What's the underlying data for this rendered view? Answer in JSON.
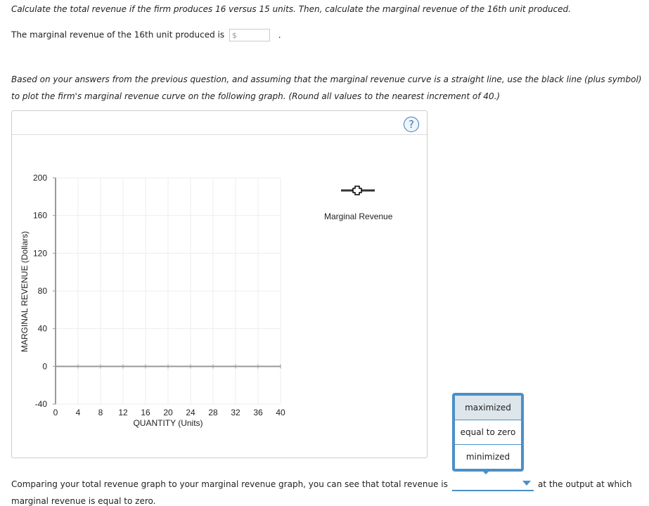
{
  "question1": "Calculate the total revenue if the firm produces 16 versus 15 units. Then, calculate the marginal revenue of the 16th unit produced.",
  "mr_sentence": {
    "prefix": "The marginal revenue of the 16th unit produced is",
    "input_placeholder": "$",
    "suffix": "."
  },
  "question2": [
    "Based on your answers from the previous question, and assuming that the marginal revenue curve is a straight line, use the black line (plus symbol)",
    "to plot the firm's marginal revenue curve on the following graph. (Round all values to the nearest increment of 40.)"
  ],
  "help_label": "?",
  "chart_data": {
    "type": "line",
    "xlabel": "QUANTITY (Units)",
    "ylabel": "MARGINAL REVENUE (Dollars)",
    "xlim": [
      0,
      40
    ],
    "ylim": [
      -40,
      200
    ],
    "xticks": [
      0,
      4,
      8,
      12,
      16,
      20,
      24,
      28,
      32,
      36,
      40
    ],
    "yticks": [
      -40,
      0,
      40,
      80,
      120,
      160,
      200
    ],
    "grid": true,
    "legend": {
      "entries": [
        "Marginal Revenue"
      ],
      "placement": "right",
      "marker": "plus"
    },
    "series": [
      {
        "name": "Marginal Revenue",
        "points": [],
        "color": "#333333"
      }
    ]
  },
  "dropdown": {
    "options": [
      "maximized",
      "equal to zero",
      "minimized"
    ],
    "highlighted": "maximized",
    "accent": "#4a90c8"
  },
  "question3": {
    "prefix": "Comparing your total revenue graph to your marginal revenue graph, you can see that total revenue is",
    "selected": "",
    "suffix": "at the output at which",
    "continuation": "marginal revenue is equal to zero."
  }
}
